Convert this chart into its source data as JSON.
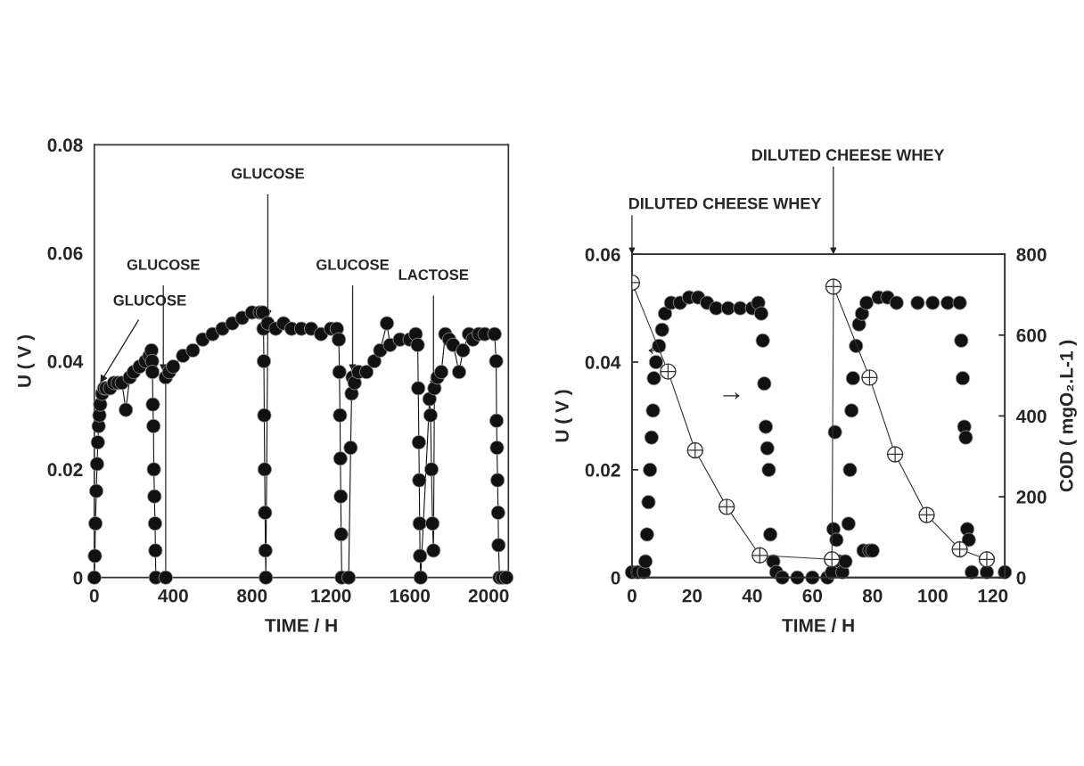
{
  "chart_data": [
    {
      "type": "line",
      "xlabel": "TIME / H",
      "ylabel": "U ( V )",
      "marker": "circle",
      "line_style": "solid",
      "xlim": [
        0,
        2100
      ],
      "xticks": [
        0,
        400,
        800,
        1200,
        1600,
        2000
      ],
      "ylim": [
        0,
        0.08
      ],
      "yticks": [
        0,
        0.02,
        0.04,
        0.06,
        0.08
      ],
      "series": [
        {
          "color": "#111111",
          "x": [
            0,
            3,
            6,
            10,
            14,
            18,
            22,
            26,
            30,
            40,
            50,
            60,
            80,
            100,
            120,
            140,
            160,
            180,
            200,
            230,
            260,
            280,
            290,
            293,
            295,
            297,
            300,
            302,
            305,
            308,
            310,
            312,
            362,
            362,
            380,
            400,
            450,
            500,
            550,
            600,
            650,
            700,
            750,
            800,
            840,
            855,
            858,
            860,
            862,
            864,
            866,
            868,
            870,
            880,
            920,
            960,
            1000,
            1050,
            1100,
            1150,
            1200,
            1230,
            1240,
            1243,
            1246,
            1248,
            1250,
            1252,
            1255,
            1290,
            1300,
            1305,
            1310,
            1320,
            1340,
            1380,
            1420,
            1450,
            1484,
            1500,
            1550,
            1600,
            1630,
            1640,
            1643,
            1646,
            1648,
            1650,
            1652,
            1655,
            1700,
            1705,
            1710,
            1715,
            1720,
            1725,
            1740,
            1760,
            1780,
            1800,
            1820,
            1850,
            1870,
            1900,
            1920,
            1950,
            1980,
            2030,
            2038,
            2040,
            2042,
            2045,
            2048,
            2050,
            2055,
            2070,
            2090
          ],
          "values": [
            0,
            0.004,
            0.01,
            0.016,
            0.021,
            0.025,
            0.028,
            0.03,
            0.032,
            0.034,
            0.035,
            0.035,
            0.035,
            0.036,
            0.036,
            0.036,
            0.031,
            0.037,
            0.038,
            0.039,
            0.04,
            0.041,
            0.042,
            0.04,
            0.038,
            0.032,
            0.028,
            0.02,
            0.015,
            0.01,
            0.005,
            0,
            0,
            0.037,
            0.038,
            0.039,
            0.041,
            0.042,
            0.044,
            0.045,
            0.046,
            0.047,
            0.048,
            0.049,
            0.049,
            0.049,
            0.046,
            0.04,
            0.03,
            0.02,
            0.012,
            0.005,
            0,
            0.047,
            0.046,
            0.047,
            0.046,
            0.046,
            0.046,
            0.045,
            0.046,
            0.046,
            0.044,
            0.038,
            0.03,
            0.022,
            0.015,
            0.008,
            0,
            0,
            0.024,
            0.034,
            0.037,
            0.036,
            0.038,
            0.038,
            0.04,
            0.042,
            0.047,
            0.043,
            0.044,
            0.044,
            0.045,
            0.043,
            0.035,
            0.025,
            0.018,
            0.01,
            0.004,
            0,
            0.033,
            0.03,
            0.02,
            0.01,
            0.005,
            0.035,
            0.037,
            0.038,
            0.045,
            0.044,
            0.043,
            0.038,
            0.042,
            0.045,
            0.044,
            0.045,
            0.045,
            0.045,
            0.04,
            0.029,
            0.024,
            0.018,
            0.012,
            0.006,
            0,
            0,
            0
          ]
        }
      ],
      "annotations": [
        {
          "text": "GLUCOSE",
          "x": 30,
          "y": 0.036
        },
        {
          "text": "GLUCOSE",
          "x": 350,
          "y": 0.038
        },
        {
          "text": "GLUCOSE",
          "x": 880,
          "y": 0.048
        },
        {
          "text": "GLUCOSE",
          "x": 1310,
          "y": 0.038
        },
        {
          "text": "LACTOSE",
          "x": 1720,
          "y": 0.035
        }
      ]
    },
    {
      "type": "scatter",
      "xlabel": "TIME / H",
      "ylabel": "U ( V )",
      "y2label": "COD ( mgO₂.L-1 )",
      "xlim": [
        0,
        124
      ],
      "xticks": [
        0,
        20,
        40,
        60,
        80,
        100,
        120
      ],
      "ylim": [
        0,
        0.06
      ],
      "yticks": [
        0,
        0.02,
        0.04,
        0.06
      ],
      "y2lim": [
        0,
        800
      ],
      "y2ticks": [
        0,
        200,
        400,
        600,
        800
      ],
      "series": [
        {
          "type": "scatter",
          "marker": "circle",
          "color": "#111111",
          "x": [
            0,
            2,
            4,
            4.5,
            5,
            5.5,
            6,
            6.5,
            7,
            7.3,
            8,
            9,
            10,
            11,
            13,
            16,
            19,
            22,
            25,
            28,
            32,
            36,
            40,
            42,
            43,
            43.5,
            44,
            44.5,
            45,
            45.5,
            46,
            47,
            48,
            50,
            55,
            60,
            65,
            66.5,
            67,
            67.5,
            68,
            69,
            70,
            71,
            72,
            72.5,
            73,
            73.5,
            74.5,
            75.5,
            76.5,
            77,
            79,
            80,
            78,
            82,
            85,
            88,
            95,
            100,
            105,
            109,
            109.5,
            110,
            110.5,
            111,
            111.5,
            112,
            113,
            118,
            124
          ],
          "values": [
            0.001,
            0.001,
            0.001,
            0.003,
            0.008,
            0.014,
            0.02,
            0.026,
            0.031,
            0.037,
            0.04,
            0.043,
            0.046,
            0.049,
            0.051,
            0.051,
            0.052,
            0.052,
            0.051,
            0.05,
            0.05,
            0.05,
            0.05,
            0.051,
            0.049,
            0.044,
            0.036,
            0.028,
            0.024,
            0.02,
            0.008,
            0.003,
            0.001,
            0,
            0,
            0,
            0,
            0.001,
            0.009,
            0.027,
            0.007,
            0.003,
            0.001,
            0.003,
            0.01,
            0.02,
            0.031,
            0.037,
            0.043,
            0.047,
            0.049,
            0.005,
            0.005,
            0.005,
            0.051,
            0.052,
            0.052,
            0.051,
            0.051,
            0.051,
            0.051,
            0.051,
            0.044,
            0.037,
            0.028,
            0.026,
            0.009,
            0.007,
            0.001,
            0.001,
            0.001
          ]
        },
        {
          "type": "line",
          "axis": "y2",
          "marker": "circle",
          "line_style": "solid",
          "color": "#333333",
          "x": [
            0,
            12,
            21,
            31.5,
            42.5,
            66.5,
            67,
            79,
            87.5,
            98,
            109,
            118
          ],
          "values": [
            730,
            510,
            315,
            175,
            55,
            45,
            720,
            495,
            305,
            155,
            70,
            45
          ]
        }
      ],
      "annotations": [
        "DILUTED CHEESE WHEY",
        "DILUTED CHEESE WHEY",
        "←",
        "→"
      ]
    }
  ]
}
